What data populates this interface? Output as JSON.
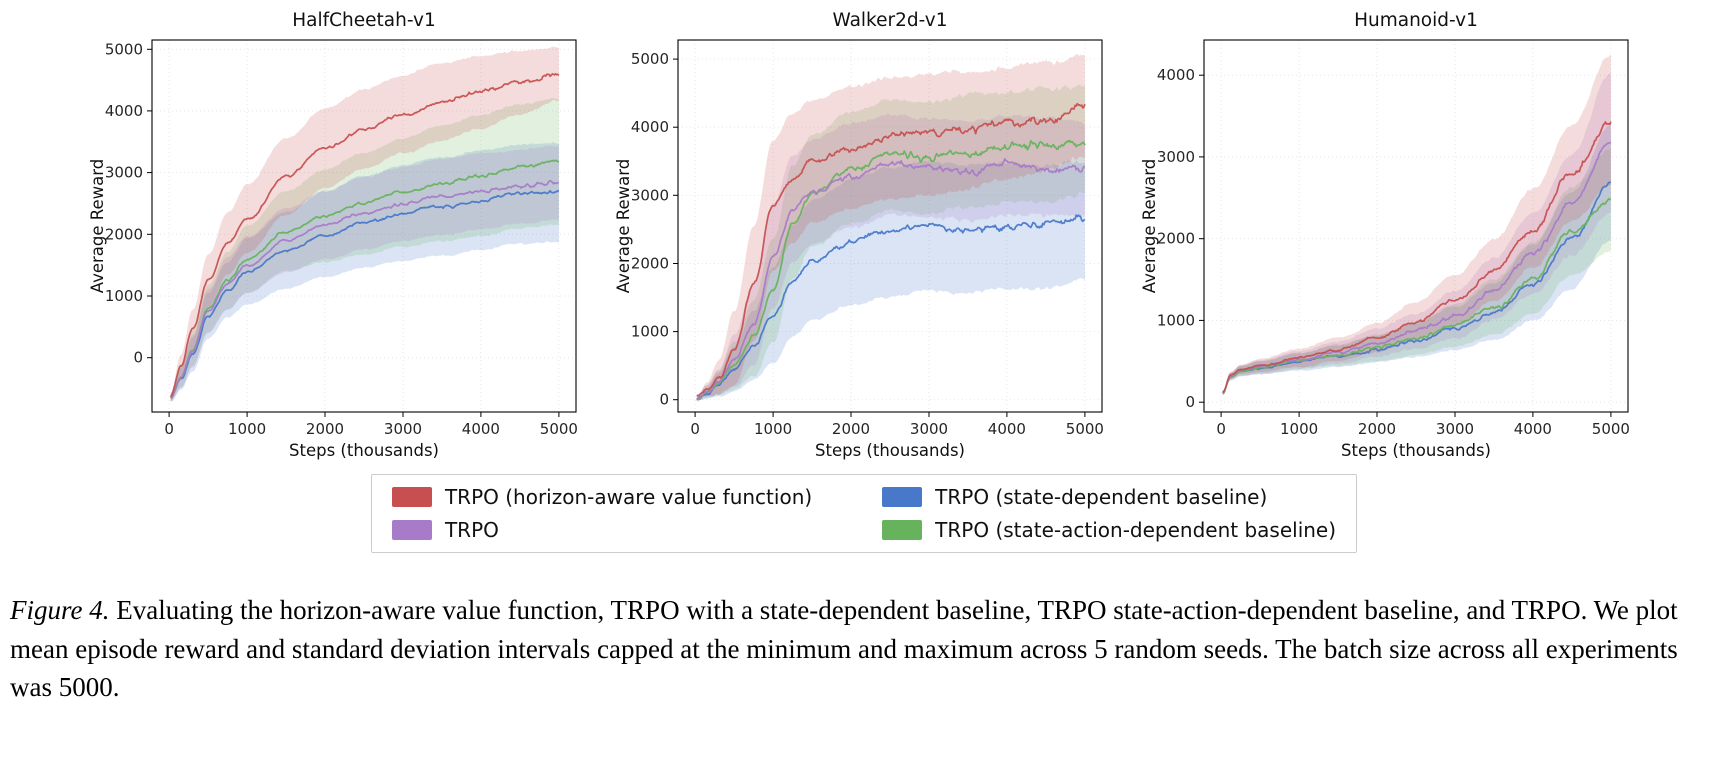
{
  "figure": {
    "caption_label": "Figure 4.",
    "caption_text": "Evaluating the horizon-aware value function, TRPO with a state-dependent baseline, TRPO state-action-dependent baseline, and TRPO. We plot mean episode reward and standard deviation intervals capped at the minimum and maximum across 5 random seeds. The batch size across all experiments was 5000."
  },
  "legend": {
    "position": "below-charts",
    "items": [
      {
        "label": "TRPO (horizon-aware value function)",
        "color": "#c6504f"
      },
      {
        "label": "TRPO",
        "color": "#a87bc9"
      },
      {
        "label": "TRPO (state-dependent baseline)",
        "color": "#4878c9"
      },
      {
        "label": "TRPO (state-action-dependent baseline)",
        "color": "#67b35d"
      }
    ]
  },
  "chart_data": [
    {
      "type": "line",
      "title": "HalfCheetah-v1",
      "xlabel": "Steps (thousands)",
      "ylabel": "Average Reward",
      "xlim": [
        -220,
        5220
      ],
      "ylim": [
        -880,
        5150
      ],
      "xticks": [
        0,
        1000,
        2000,
        3000,
        4000,
        5000
      ],
      "yticks": [
        0,
        1000,
        2000,
        3000,
        4000,
        5000
      ],
      "grid": "dotted-light",
      "series": [
        {
          "name": "TRPO (state-dependent baseline)",
          "color": "#4878c9",
          "x": [
            20,
            150,
            300,
            500,
            750,
            1000,
            1500,
            2000,
            2500,
            3000,
            3500,
            4000,
            4500,
            5000
          ],
          "mean": [
            -650,
            -350,
            50,
            680,
            1100,
            1400,
            1750,
            2000,
            2200,
            2350,
            2450,
            2550,
            2650,
            2680
          ],
          "band": [
            60,
            170,
            270,
            370,
            450,
            530,
            620,
            690,
            740,
            780,
            800,
            810,
            810,
            800
          ],
          "amp": [
            30,
            55
          ]
        },
        {
          "name": "TRPO (state-action-dependent baseline)",
          "color": "#67b35d",
          "x": [
            20,
            150,
            300,
            500,
            750,
            1000,
            1500,
            2000,
            2500,
            3000,
            3500,
            4000,
            4500,
            5000
          ],
          "mean": [
            -640,
            -300,
            150,
            800,
            1250,
            1600,
            2050,
            2300,
            2500,
            2680,
            2820,
            2950,
            3100,
            3180
          ],
          "band": [
            60,
            180,
            280,
            380,
            460,
            540,
            650,
            750,
            820,
            880,
            930,
            980,
            1010,
            1020
          ],
          "amp": [
            30,
            55
          ]
        },
        {
          "name": "TRPO",
          "color": "#a87bc9",
          "x": [
            20,
            150,
            300,
            500,
            750,
            1000,
            1500,
            2000,
            2500,
            3000,
            3500,
            4000,
            4500,
            5000
          ],
          "mean": [
            -640,
            -320,
            100,
            750,
            1200,
            1500,
            1900,
            2150,
            2350,
            2500,
            2600,
            2700,
            2780,
            2840
          ],
          "band": [
            60,
            170,
            260,
            350,
            420,
            470,
            520,
            560,
            580,
            600,
            610,
            610,
            600,
            590
          ],
          "amp": [
            30,
            55
          ]
        },
        {
          "name": "TRPO (horizon-aware value function)",
          "color": "#c6504f",
          "x": [
            20,
            150,
            300,
            500,
            750,
            1000,
            1500,
            2000,
            2500,
            3000,
            3500,
            4000,
            4500,
            5000
          ],
          "mean": [
            -620,
            -150,
            450,
            1250,
            1850,
            2250,
            2950,
            3400,
            3700,
            3950,
            4150,
            4300,
            4450,
            4600
          ],
          "band": [
            60,
            200,
            320,
            420,
            500,
            560,
            620,
            650,
            650,
            640,
            620,
            580,
            520,
            420
          ],
          "amp": [
            35,
            65
          ]
        }
      ]
    },
    {
      "type": "line",
      "title": "Walker2d-v1",
      "xlabel": "Steps (thousands)",
      "ylabel": "Average Reward",
      "xlim": [
        -220,
        5220
      ],
      "ylim": [
        -180,
        5280
      ],
      "xticks": [
        0,
        1000,
        2000,
        3000,
        4000,
        5000
      ],
      "yticks": [
        0,
        1000,
        2000,
        3000,
        4000,
        5000
      ],
      "grid": "dotted-light",
      "series": [
        {
          "name": "TRPO (state-dependent baseline)",
          "color": "#4878c9",
          "x": [
            20,
            150,
            300,
            500,
            750,
            1000,
            1250,
            1500,
            2000,
            2500,
            3000,
            3500,
            4000,
            4500,
            5000
          ],
          "mean": [
            20,
            100,
            220,
            450,
            800,
            1250,
            1750,
            2050,
            2300,
            2450,
            2550,
            2500,
            2550,
            2550,
            2650
          ],
          "band": [
            30,
            80,
            170,
            330,
            520,
            700,
            820,
            880,
            920,
            940,
            940,
            930,
            920,
            900,
            870
          ],
          "amp": [
            35,
            110
          ]
        },
        {
          "name": "TRPO (state-action-dependent baseline)",
          "color": "#67b35d",
          "x": [
            20,
            150,
            300,
            500,
            750,
            1000,
            1250,
            1500,
            2000,
            2500,
            3000,
            3500,
            4000,
            4500,
            5000
          ],
          "mean": [
            20,
            120,
            250,
            500,
            900,
            1600,
            2600,
            3050,
            3400,
            3600,
            3550,
            3650,
            3700,
            3750,
            3800
          ],
          "band": [
            30,
            90,
            180,
            350,
            550,
            750,
            820,
            820,
            820,
            820,
            820,
            820,
            820,
            810,
            800
          ],
          "amp": [
            40,
            130
          ]
        },
        {
          "name": "TRPO",
          "color": "#a87bc9",
          "x": [
            20,
            150,
            300,
            500,
            750,
            1000,
            1250,
            1500,
            2000,
            2500,
            3000,
            3500,
            4000,
            4500,
            5000
          ],
          "mean": [
            20,
            130,
            270,
            580,
            1100,
            2100,
            2800,
            3050,
            3300,
            3450,
            3400,
            3350,
            3450,
            3400,
            3400
          ],
          "band": [
            30,
            90,
            190,
            380,
            600,
            780,
            800,
            780,
            760,
            750,
            740,
            730,
            730,
            720,
            700
          ],
          "amp": [
            40,
            125
          ]
        },
        {
          "name": "TRPO (horizon-aware value function)",
          "color": "#c6504f",
          "x": [
            20,
            150,
            300,
            500,
            750,
            1000,
            1250,
            1500,
            2000,
            2500,
            3000,
            3500,
            4000,
            4500,
            5000
          ],
          "mean": [
            30,
            150,
            320,
            750,
            1700,
            2850,
            3250,
            3500,
            3700,
            3850,
            3900,
            3950,
            4050,
            4150,
            4300
          ],
          "band": [
            30,
            100,
            250,
            550,
            850,
            950,
            950,
            900,
            900,
            900,
            880,
            850,
            820,
            800,
            750
          ],
          "amp": [
            40,
            130
          ]
        }
      ]
    },
    {
      "type": "line",
      "title": "Humanoid-v1",
      "xlabel": "Steps (thousands)",
      "ylabel": "Average Reward",
      "xlim": [
        -220,
        5220
      ],
      "ylim": [
        -120,
        4430
      ],
      "xticks": [
        0,
        1000,
        2000,
        3000,
        4000,
        5000
      ],
      "yticks": [
        0,
        1000,
        2000,
        3000,
        4000
      ],
      "grid": "dotted-light",
      "series": [
        {
          "name": "TRPO (state-dependent baseline)",
          "color": "#4878c9",
          "x": [
            20,
            120,
            250,
            500,
            1000,
            1500,
            2000,
            2500,
            3000,
            3500,
            4000,
            4500,
            5000
          ],
          "mean": [
            110,
            310,
            380,
            420,
            495,
            565,
            650,
            760,
            900,
            1110,
            1460,
            1990,
            2680
          ],
          "band": [
            25,
            45,
            60,
            80,
            105,
            130,
            165,
            210,
            270,
            350,
            460,
            590,
            700
          ],
          "amp": [
            12,
            60
          ]
        },
        {
          "name": "TRPO (state-action-dependent baseline)",
          "color": "#67b35d",
          "x": [
            20,
            120,
            250,
            500,
            1000,
            1500,
            2000,
            2500,
            3000,
            3500,
            4000,
            4500,
            5000
          ],
          "mean": [
            112,
            315,
            385,
            425,
            500,
            575,
            665,
            780,
            940,
            1160,
            1520,
            2080,
            2480
          ],
          "band": [
            25,
            45,
            60,
            78,
            100,
            128,
            160,
            205,
            260,
            335,
            430,
            540,
            620
          ],
          "amp": [
            12,
            60
          ]
        },
        {
          "name": "TRPO",
          "color": "#a87bc9",
          "x": [
            20,
            120,
            250,
            500,
            1000,
            1500,
            2000,
            2500,
            3000,
            3500,
            4000,
            4500,
            5000
          ],
          "mean": [
            115,
            320,
            390,
            435,
            520,
            610,
            720,
            870,
            1070,
            1380,
            1820,
            2420,
            3180
          ],
          "band": [
            25,
            45,
            60,
            80,
            105,
            135,
            170,
            220,
            290,
            380,
            500,
            620,
            850
          ],
          "amp": [
            12,
            75
          ]
        },
        {
          "name": "TRPO (horizon-aware value function)",
          "color": "#c6504f",
          "x": [
            20,
            120,
            250,
            500,
            1000,
            1500,
            2000,
            2500,
            3000,
            3500,
            4000,
            4500,
            5000
          ],
          "mean": [
            120,
            330,
            400,
            450,
            545,
            650,
            790,
            990,
            1250,
            1620,
            2120,
            2800,
            3440
          ],
          "band": [
            25,
            45,
            60,
            80,
            110,
            140,
            180,
            230,
            300,
            380,
            480,
            580,
            800
          ],
          "amp": [
            12,
            70
          ]
        }
      ]
    }
  ]
}
